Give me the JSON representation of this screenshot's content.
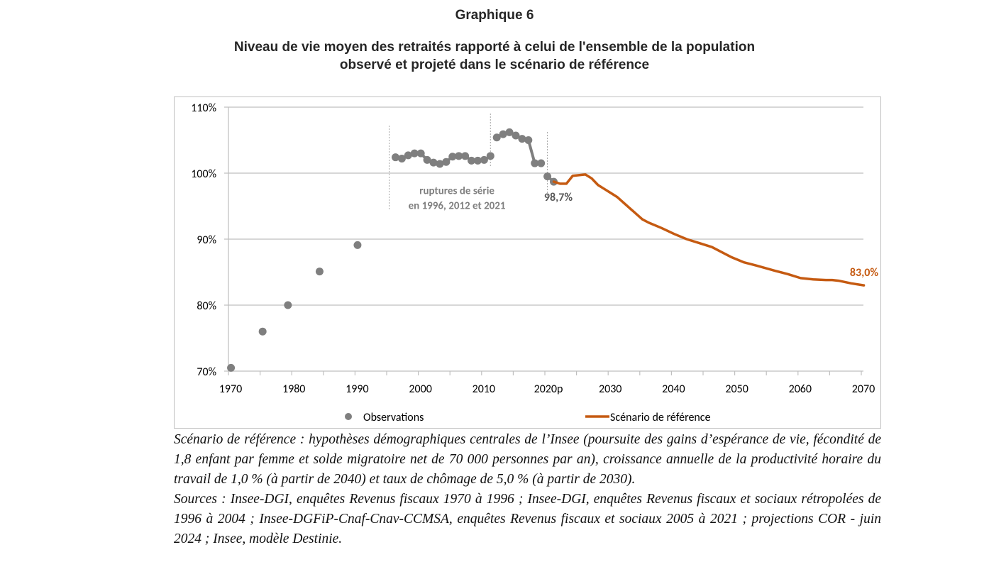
{
  "figure": {
    "number": "Graphique 6",
    "title_line1": "Niveau de vie moyen des retraités rapporté à celui de l'ensemble de la population",
    "title_line2": "observé et projeté dans le scénario de référence"
  },
  "caption": {
    "scenario": "Scénario de référence : hypothèses démographiques centrales de l’Insee (poursuite des gains d’espérance de vie, fécondité de 1,8 enfant par femme et solde migratoire net de 70 000 personnes par an), croissance annuelle de la productivité horaire du travail de 1,0 % (à partir de 2040) et taux de chômage de 5,0 % (à partir de 2030).",
    "sources": "Sources : Insee-DGI, enquêtes Revenus fiscaux 1970 à 1996 ; Insee-DGI, enquêtes Revenus fiscaux et sociaux rétropolées de 1996 à 2004 ; Insee-DGFiP-Cnaf-Cnav-CCMSA, enquêtes Revenus fiscaux et sociaux 2005 à 2021 ; projections COR - juin 2024 ; Insee, modèle Destinie."
  },
  "colors": {
    "observations": "#7f7f7f",
    "projection": "#c55a11",
    "grid": "#bfbfbf",
    "annotation_text": "#7f7f7f",
    "label_observed": "#595959"
  },
  "chart_data": {
    "type": "line",
    "title": "Niveau de vie moyen des retraités rapporté à celui de l'ensemble de la population observé et projeté dans le scénario de référence",
    "xlabel": "",
    "ylabel": "",
    "xlim": [
      1970,
      2070
    ],
    "ylim": [
      70,
      110
    ],
    "grid": true,
    "legend_position": "bottom",
    "x_ticks": [
      {
        "value": 1970,
        "label": "1970"
      },
      {
        "value": 1980,
        "label": "1980"
      },
      {
        "value": 1990,
        "label": "1990"
      },
      {
        "value": 2000,
        "label": "2000"
      },
      {
        "value": 2010,
        "label": "2010"
      },
      {
        "value": 2020,
        "label": "2020p"
      },
      {
        "value": 2030,
        "label": "2030"
      },
      {
        "value": 2040,
        "label": "2040"
      },
      {
        "value": 2050,
        "label": "2050"
      },
      {
        "value": 2060,
        "label": "2060"
      },
      {
        "value": 2070,
        "label": "2070"
      }
    ],
    "y_ticks": [
      {
        "value": 70,
        "label": "70%"
      },
      {
        "value": 80,
        "label": "80%"
      },
      {
        "value": 90,
        "label": "90%"
      },
      {
        "value": 100,
        "label": "100%"
      },
      {
        "value": 110,
        "label": "110%"
      }
    ],
    "series": [
      {
        "name": "Observations",
        "kind": "markers",
        "segments": [
          {
            "connected": false,
            "points": [
              [
                1970,
                70.5
              ],
              [
                1975,
                76.0
              ],
              [
                1979,
                80.0
              ],
              [
                1984,
                85.1
              ],
              [
                1990,
                89.1
              ]
            ]
          },
          {
            "connected": true,
            "points": [
              [
                1996,
                102.4
              ],
              [
                1997,
                102.2
              ],
              [
                1998,
                102.7
              ],
              [
                1999,
                103.0
              ],
              [
                2000,
                103.0
              ],
              [
                2001,
                102.0
              ],
              [
                2002,
                101.6
              ],
              [
                2003,
                101.4
              ],
              [
                2004,
                101.7
              ],
              [
                2005,
                102.5
              ],
              [
                2006,
                102.6
              ],
              [
                2007,
                102.6
              ],
              [
                2008,
                101.9
              ],
              [
                2009,
                101.9
              ],
              [
                2010,
                102.0
              ],
              [
                2011,
                102.6
              ]
            ]
          },
          {
            "connected": true,
            "points": [
              [
                2012,
                105.4
              ],
              [
                2013,
                105.9
              ],
              [
                2014,
                106.2
              ],
              [
                2015,
                105.7
              ],
              [
                2016,
                105.2
              ],
              [
                2017,
                105.0
              ],
              [
                2018,
                101.5
              ],
              [
                2019,
                101.5
              ]
            ]
          },
          {
            "connected": true,
            "points": [
              [
                2020,
                99.5
              ],
              [
                2021,
                98.7
              ]
            ]
          }
        ]
      },
      {
        "name": "Scénario de référence",
        "kind": "line",
        "points": [
          [
            2021,
            98.7
          ],
          [
            2022,
            98.4
          ],
          [
            2023,
            98.4
          ],
          [
            2024,
            99.6
          ],
          [
            2026,
            99.8
          ],
          [
            2027,
            99.2
          ],
          [
            2028,
            98.2
          ],
          [
            2029,
            97.6
          ],
          [
            2030,
            97.0
          ],
          [
            2031,
            96.4
          ],
          [
            2033,
            94.7
          ],
          [
            2035,
            93.0
          ],
          [
            2036,
            92.5
          ],
          [
            2038,
            91.7
          ],
          [
            2040,
            90.8
          ],
          [
            2042,
            90.0
          ],
          [
            2044,
            89.4
          ],
          [
            2046,
            88.8
          ],
          [
            2047,
            88.3
          ],
          [
            2049,
            87.3
          ],
          [
            2051,
            86.5
          ],
          [
            2053,
            86.0
          ],
          [
            2056,
            85.2
          ],
          [
            2058,
            84.7
          ],
          [
            2060,
            84.1
          ],
          [
            2062,
            83.9
          ],
          [
            2064,
            83.8
          ],
          [
            2065,
            83.8
          ],
          [
            2066,
            83.7
          ],
          [
            2068,
            83.3
          ],
          [
            2070,
            83.0
          ]
        ]
      }
    ],
    "break_lines": [
      1996,
      2012,
      2021
    ],
    "annotations": [
      {
        "text_line1": "ruptures de série",
        "text_line2": "en 1996, 2012 et 2021",
        "x": 2007,
        "y": 97.5
      },
      {
        "text": "98,7%",
        "x": 2021,
        "y": 98.7,
        "series": "Observations"
      },
      {
        "text": "83,0%",
        "x": 2070,
        "y": 83.0,
        "series": "Scénario de référence"
      }
    ],
    "legend": [
      {
        "label": "Observations",
        "symbol": "marker"
      },
      {
        "label": "Scénario de référence",
        "symbol": "line"
      }
    ]
  }
}
